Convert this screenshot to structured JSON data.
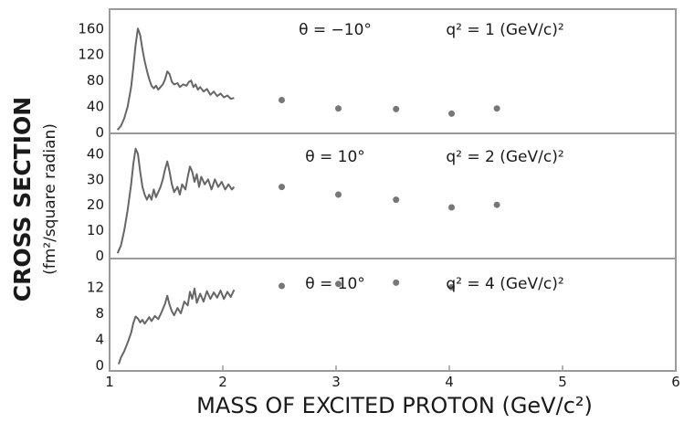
{
  "chart_data": {
    "type": "line",
    "xlabel": "MASS OF EXCITED PROTON (GeV/c²)",
    "ylabel": "CROSS SECTION",
    "ylabel_sub": "(fm²/square radian)",
    "xlim": [
      1,
      6
    ],
    "x_ticks": [
      "1",
      "2",
      "3",
      "4",
      "5",
      "6"
    ],
    "grid": false,
    "line_color": "#666666",
    "point_color": "#777777",
    "panels": [
      {
        "theta_label": "θ = −10°",
        "q2_label": "q² = 1 (GeV/c)²",
        "ylim": [
          0,
          190
        ],
        "y_ticks": [
          "0",
          "40",
          "80",
          "120",
          "160"
        ],
        "series": [
          {
            "type": "line",
            "points": [
              [
                1.07,
                4
              ],
              [
                1.1,
                10
              ],
              [
                1.13,
                22
              ],
              [
                1.16,
                40
              ],
              [
                1.19,
                70
              ],
              [
                1.21,
                100
              ],
              [
                1.23,
                135
              ],
              [
                1.25,
                160
              ],
              [
                1.27,
                150
              ],
              [
                1.29,
                128
              ],
              [
                1.31,
                110
              ],
              [
                1.33,
                95
              ],
              [
                1.35,
                82
              ],
              [
                1.37,
                72
              ],
              [
                1.39,
                68
              ],
              [
                1.41,
                72
              ],
              [
                1.43,
                66
              ],
              [
                1.45,
                70
              ],
              [
                1.47,
                74
              ],
              [
                1.49,
                82
              ],
              [
                1.51,
                94
              ],
              [
                1.53,
                90
              ],
              [
                1.55,
                78
              ],
              [
                1.57,
                74
              ],
              [
                1.6,
                76
              ],
              [
                1.62,
                70
              ],
              [
                1.65,
                74
              ],
              [
                1.68,
                72
              ],
              [
                1.7,
                78
              ],
              [
                1.72,
                80
              ],
              [
                1.74,
                70
              ],
              [
                1.76,
                74
              ],
              [
                1.78,
                66
              ],
              [
                1.8,
                70
              ],
              [
                1.83,
                63
              ],
              [
                1.86,
                67
              ],
              [
                1.89,
                58
              ],
              [
                1.92,
                63
              ],
              [
                1.95,
                56
              ],
              [
                1.98,
                60
              ],
              [
                2.01,
                54
              ],
              [
                2.04,
                57
              ],
              [
                2.07,
                52
              ],
              [
                2.1,
                53
              ]
            ]
          },
          {
            "type": "scatter",
            "points": [
              [
                2.52,
                50
              ],
              [
                3.02,
                37
              ],
              [
                3.53,
                36
              ],
              [
                4.02,
                29
              ],
              [
                4.42,
                37
              ]
            ]
          }
        ]
      },
      {
        "theta_label": "θ = 10°",
        "q2_label": "q² = 2 (GeV/c)²",
        "ylim": [
          0,
          48
        ],
        "y_ticks": [
          "0",
          "10",
          "20",
          "30",
          "40"
        ],
        "series": [
          {
            "type": "line",
            "points": [
              [
                1.07,
                1
              ],
              [
                1.1,
                4
              ],
              [
                1.13,
                10
              ],
              [
                1.16,
                18
              ],
              [
                1.19,
                28
              ],
              [
                1.21,
                36
              ],
              [
                1.23,
                42
              ],
              [
                1.25,
                40
              ],
              [
                1.27,
                33
              ],
              [
                1.29,
                27
              ],
              [
                1.31,
                24
              ],
              [
                1.33,
                22
              ],
              [
                1.35,
                24
              ],
              [
                1.37,
                22
              ],
              [
                1.39,
                26
              ],
              [
                1.41,
                23
              ],
              [
                1.43,
                25
              ],
              [
                1.45,
                27
              ],
              [
                1.47,
                30
              ],
              [
                1.49,
                34
              ],
              [
                1.51,
                37
              ],
              [
                1.53,
                33
              ],
              [
                1.55,
                28
              ],
              [
                1.57,
                25
              ],
              [
                1.6,
                27
              ],
              [
                1.62,
                24
              ],
              [
                1.64,
                28
              ],
              [
                1.67,
                26
              ],
              [
                1.69,
                31
              ],
              [
                1.71,
                35
              ],
              [
                1.73,
                33
              ],
              [
                1.75,
                29
              ],
              [
                1.77,
                32
              ],
              [
                1.79,
                27
              ],
              [
                1.81,
                31
              ],
              [
                1.84,
                28
              ],
              [
                1.87,
                30
              ],
              [
                1.9,
                26
              ],
              [
                1.93,
                30
              ],
              [
                1.96,
                27
              ],
              [
                1.99,
                29
              ],
              [
                2.02,
                26
              ],
              [
                2.05,
                28
              ],
              [
                2.08,
                26
              ],
              [
                2.1,
                27
              ]
            ]
          },
          {
            "type": "scatter",
            "points": [
              [
                2.52,
                27
              ],
              [
                3.02,
                24
              ],
              [
                3.53,
                22
              ],
              [
                4.02,
                19
              ],
              [
                4.42,
                20
              ]
            ]
          }
        ]
      },
      {
        "theta_label": "θ = 10°",
        "q2_label": "q² = 4 (GeV/c)²",
        "ylim": [
          0,
          16.4
        ],
        "y_ticks": [
          "0",
          "4",
          "8",
          "12"
        ],
        "series": [
          {
            "type": "line",
            "points": [
              [
                1.08,
                0.2
              ],
              [
                1.1,
                1.2
              ],
              [
                1.13,
                2.2
              ],
              [
                1.16,
                3.5
              ],
              [
                1.19,
                5
              ],
              [
                1.21,
                6.5
              ],
              [
                1.23,
                7.5
              ],
              [
                1.25,
                7.2
              ],
              [
                1.27,
                6.6
              ],
              [
                1.29,
                7
              ],
              [
                1.31,
                6.4
              ],
              [
                1.33,
                6.9
              ],
              [
                1.35,
                7.4
              ],
              [
                1.37,
                6.8
              ],
              [
                1.4,
                7.6
              ],
              [
                1.43,
                7.1
              ],
              [
                1.46,
                8.2
              ],
              [
                1.49,
                9.5
              ],
              [
                1.51,
                10.7
              ],
              [
                1.53,
                9.3
              ],
              [
                1.55,
                8.3
              ],
              [
                1.57,
                7.7
              ],
              [
                1.6,
                8.8
              ],
              [
                1.63,
                8
              ],
              [
                1.66,
                9.8
              ],
              [
                1.69,
                9.2
              ],
              [
                1.71,
                11.3
              ],
              [
                1.73,
                10.2
              ],
              [
                1.75,
                11.8
              ],
              [
                1.77,
                9.6
              ],
              [
                1.8,
                11
              ],
              [
                1.83,
                9.8
              ],
              [
                1.86,
                11.4
              ],
              [
                1.89,
                10.2
              ],
              [
                1.92,
                11.2
              ],
              [
                1.95,
                10.4
              ],
              [
                1.98,
                11.5
              ],
              [
                2.01,
                10.2
              ],
              [
                2.04,
                11.3
              ],
              [
                2.07,
                10.5
              ],
              [
                2.1,
                11.6
              ]
            ]
          },
          {
            "type": "scatter",
            "points": [
              [
                2.52,
                12.2
              ],
              [
                3.02,
                12.5
              ],
              [
                3.53,
                12.7
              ],
              [
                4.02,
                12
              ]
            ]
          }
        ]
      }
    ]
  }
}
